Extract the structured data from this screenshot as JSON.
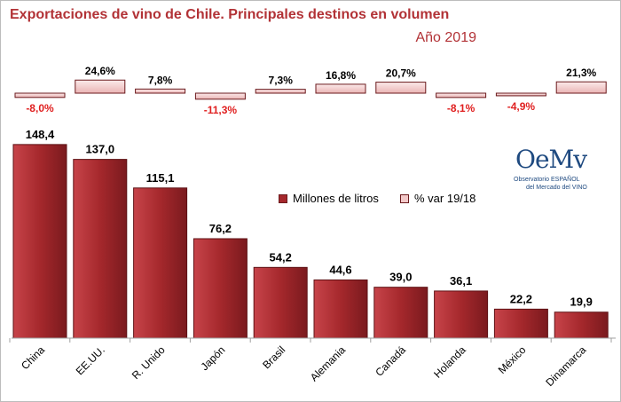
{
  "chart_data": {
    "type": "bar",
    "title": "Exportaciones de vino de Chile. Principales destinos en volumen",
    "subtitle": "Año 2019",
    "categories": [
      "China",
      "EE.UU.",
      "R. Unido",
      "Japón",
      "Brasil",
      "Alemania",
      "Canadá",
      "Holanda",
      "México",
      "Dinamarca"
    ],
    "series": [
      {
        "name": "Millones de litros",
        "values": [
          148.4,
          137.0,
          115.1,
          76.2,
          54.2,
          44.6,
          39.0,
          36.1,
          22.2,
          19.9
        ],
        "labels": [
          "148,4",
          "137,0",
          "115,1",
          "76,2",
          "54,2",
          "44,6",
          "39,0",
          "36,1",
          "22,2",
          "19,9"
        ]
      },
      {
        "name": "% var 19/18",
        "values": [
          -8.0,
          24.6,
          7.8,
          -11.3,
          7.3,
          16.8,
          20.7,
          -8.1,
          -4.9,
          21.3
        ],
        "labels": [
          "-8,0%",
          "24,6%",
          "7,8%",
          "-11,3%",
          "7,3%",
          "16,8%",
          "20,7%",
          "-8,1%",
          "-4,9%",
          "21,3%"
        ]
      }
    ],
    "legend_position": "middle-right",
    "grid": false,
    "colors": {
      "volume_bar": "#a5282c",
      "volume_bar_highlight": "#cf4a4c",
      "variation_bar": "#f3c9c9",
      "negative_label": "#e02020",
      "title": "#b23236"
    }
  },
  "logo": {
    "mark": "OeMv",
    "line1": "Observatorio ESPAÑOL",
    "line2": "del Mercado del VINO"
  }
}
